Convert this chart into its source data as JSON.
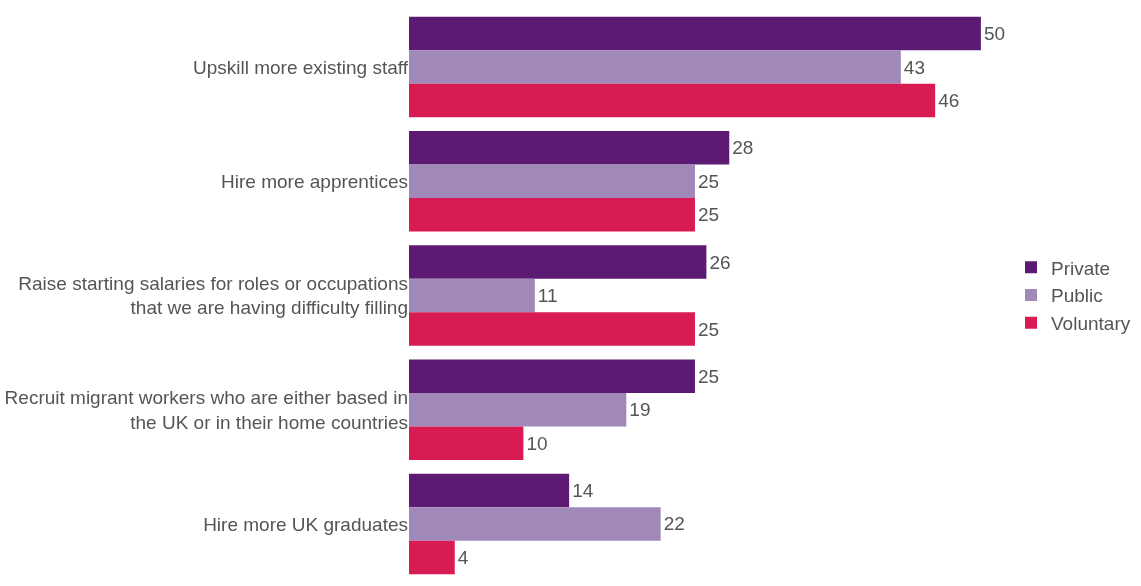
{
  "chart_data": {
    "type": "bar",
    "orientation": "horizontal",
    "categories": [
      "Upskill more existing staff",
      "Hire more apprentices",
      "Raise starting salaries for roles or occupations that we are having difficulty filling",
      "Recruit migrant workers who are either based in the UK or in their home countries",
      "Hire more UK graduates"
    ],
    "series": [
      {
        "name": "Private",
        "color": "#5c1a72",
        "values": [
          50,
          28,
          26,
          25,
          14
        ]
      },
      {
        "name": "Public",
        "color": "#a088b8",
        "values": [
          43,
          25,
          11,
          19,
          22
        ]
      },
      {
        "name": "Voluntary",
        "color": "#d81b52",
        "values": [
          46,
          25,
          25,
          10,
          4
        ]
      }
    ],
    "data_labels": true,
    "legend": "right",
    "tick_labels": "y"
  }
}
